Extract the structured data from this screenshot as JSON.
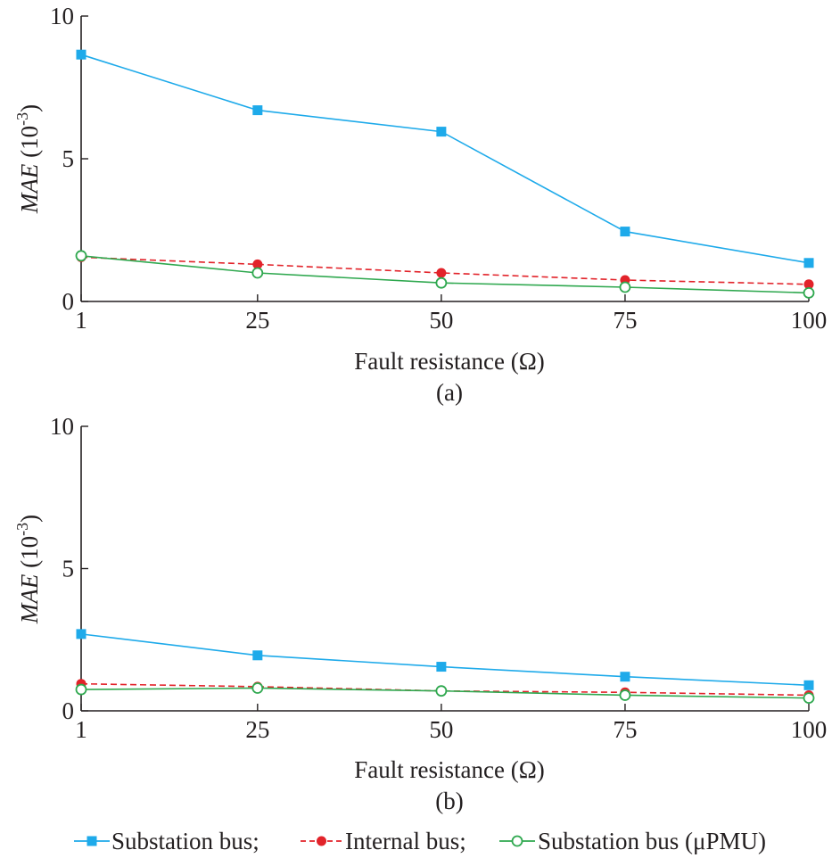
{
  "chart_data": [
    {
      "type": "line",
      "panel_label": "(a)",
      "xlabel": "Fault resistance (Ω)",
      "ylabel": {
        "main": "MAE",
        "unit_prefix": " (10",
        "unit_exp": "-3",
        "unit_suffix": ")"
      },
      "categories": [
        "1",
        "25",
        "50",
        "75",
        "100"
      ],
      "x": [
        1,
        25,
        50,
        75,
        100
      ],
      "xlim": [
        1,
        100
      ],
      "ylim": [
        0,
        10
      ],
      "yticks": [
        "0",
        "5",
        "10"
      ],
      "grid": false,
      "series": [
        {
          "name": "Substation bus;",
          "values": [
            8.65,
            6.7,
            5.95,
            2.45,
            1.35
          ],
          "color": "#1eaaea",
          "marker": "square",
          "dash": "solid"
        },
        {
          "name": "Internal bus;",
          "values": [
            1.55,
            1.3,
            1.0,
            0.75,
            0.6
          ],
          "color": "#e2232a",
          "marker": "filled-circle",
          "dash": "dashed"
        },
        {
          "name": "Substation bus (μPMU)",
          "values": [
            1.6,
            1.0,
            0.65,
            0.5,
            0.3
          ],
          "color": "#2fa84f",
          "marker": "open-circle",
          "dash": "solid"
        }
      ]
    },
    {
      "type": "line",
      "panel_label": "(b)",
      "xlabel": "Fault resistance (Ω)",
      "ylabel": {
        "main": "MAE",
        "unit_prefix": " (10",
        "unit_exp": "-3",
        "unit_suffix": ")"
      },
      "categories": [
        "1",
        "25",
        "50",
        "75",
        "100"
      ],
      "x": [
        1,
        25,
        50,
        75,
        100
      ],
      "xlim": [
        1,
        100
      ],
      "ylim": [
        0,
        10
      ],
      "yticks": [
        "0",
        "5",
        "10"
      ],
      "grid": false,
      "series": [
        {
          "name": "Substation bus;",
          "values": [
            2.7,
            1.95,
            1.55,
            1.2,
            0.9
          ],
          "color": "#1eaaea",
          "marker": "square",
          "dash": "solid"
        },
        {
          "name": "Internal bus;",
          "values": [
            0.95,
            0.85,
            0.7,
            0.65,
            0.55
          ],
          "color": "#e2232a",
          "marker": "filled-circle",
          "dash": "dashed"
        },
        {
          "name": "Substation bus (μPMU)",
          "values": [
            0.75,
            0.8,
            0.7,
            0.55,
            0.45
          ],
          "color": "#2fa84f",
          "marker": "open-circle",
          "dash": "solid"
        }
      ]
    }
  ],
  "legend": {
    "placement": "bottom-center",
    "items": [
      {
        "label": "Substation bus;",
        "color": "#1eaaea",
        "marker": "square",
        "dash": "solid"
      },
      {
        "label": "Internal bus;",
        "color": "#e2232a",
        "marker": "filled-circle",
        "dash": "dashed"
      },
      {
        "label": "Substation bus (μPMU)",
        "color": "#2fa84f",
        "marker": "open-circle",
        "dash": "solid"
      }
    ]
  }
}
